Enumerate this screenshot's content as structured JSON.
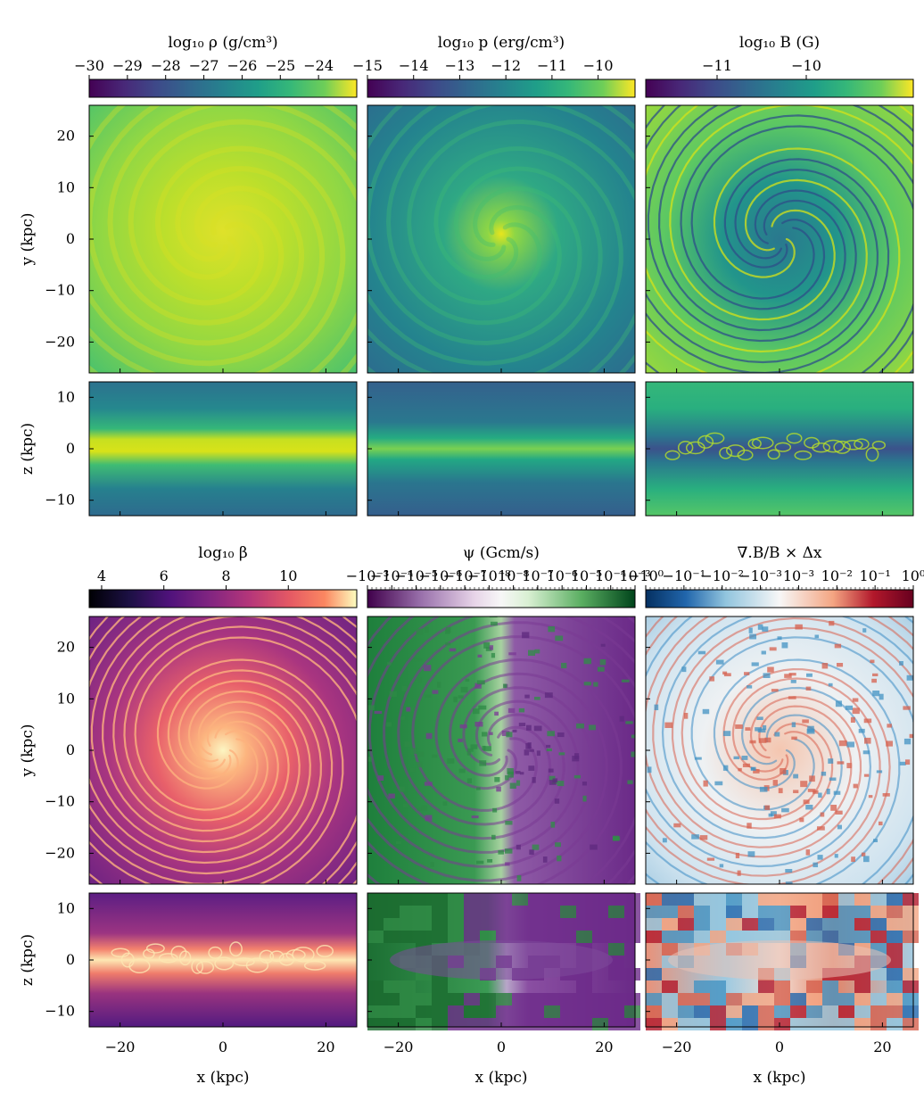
{
  "chart_data": {
    "type": "heatmap",
    "layout": "2 groups x 3 columns; each group has a face-on map (x-y) and an edge-on map (x-z)",
    "axes": {
      "x_label": "x (kpc)",
      "y_label": "y (kpc)",
      "z_label": "z (kpc)",
      "x_range": [
        -26,
        26
      ],
      "y_range": [
        -26,
        26
      ],
      "z_range": [
        -13,
        13
      ],
      "x_ticks": [
        "−20",
        "0",
        "20"
      ],
      "y_ticks": [
        "20",
        "10",
        "0",
        "−10",
        "−20"
      ],
      "z_ticks": [
        "10",
        "0",
        "−10"
      ]
    },
    "panels": [
      {
        "id": "density",
        "colorbar_title": "log₁₀ ρ (g/cm³)",
        "colormap": "viridis",
        "colorbar_ticks": [
          "−30",
          "−29",
          "−28",
          "−27",
          "−26",
          "−25",
          "−24"
        ],
        "colorbar_range": [
          -30,
          -23
        ]
      },
      {
        "id": "pressure",
        "colorbar_title": "log₁₀ p (erg/cm³)",
        "colormap": "viridis",
        "colorbar_ticks": [
          "−15",
          "−14",
          "−13",
          "−12",
          "−11",
          "−10"
        ],
        "colorbar_range": [
          -15,
          -9.2
        ]
      },
      {
        "id": "magnetic",
        "colorbar_title": "log₁₀ B (G)",
        "colormap": "viridis",
        "colorbar_ticks": [
          "−11",
          "−10"
        ],
        "colorbar_range": [
          -11.8,
          -8.8
        ]
      },
      {
        "id": "beta",
        "colorbar_title": "log₁₀ β",
        "colormap": "magma",
        "colorbar_ticks": [
          "4",
          "6",
          "8",
          "10"
        ],
        "colorbar_range": [
          3.6,
          12.2
        ]
      },
      {
        "id": "psi",
        "colorbar_title": "ψ (Gcm/s)",
        "colormap": "PRGn",
        "colorbar_ticks": [
          "−10⁻³",
          "−10⁻⁴",
          "−10⁻⁵",
          "−10⁻⁶",
          "−10⁻⁷",
          "−10⁻⁸",
          "10⁻⁸",
          "10⁻⁷",
          "10⁻⁶",
          "10⁻⁵",
          "10⁻⁴",
          "10⁻³"
        ],
        "colorbar_range": [
          -1,
          1
        ]
      },
      {
        "id": "divb",
        "colorbar_title": "∇.B/B × Δx",
        "colormap": "RdBu_r",
        "colorbar_ticks": [
          "−10⁰",
          "−10⁻¹",
          "−10⁻²",
          "−10⁻³",
          "10⁻³",
          "10⁻²",
          "10⁻¹",
          "10⁰"
        ],
        "colorbar_range": [
          -1,
          1
        ]
      }
    ]
  }
}
